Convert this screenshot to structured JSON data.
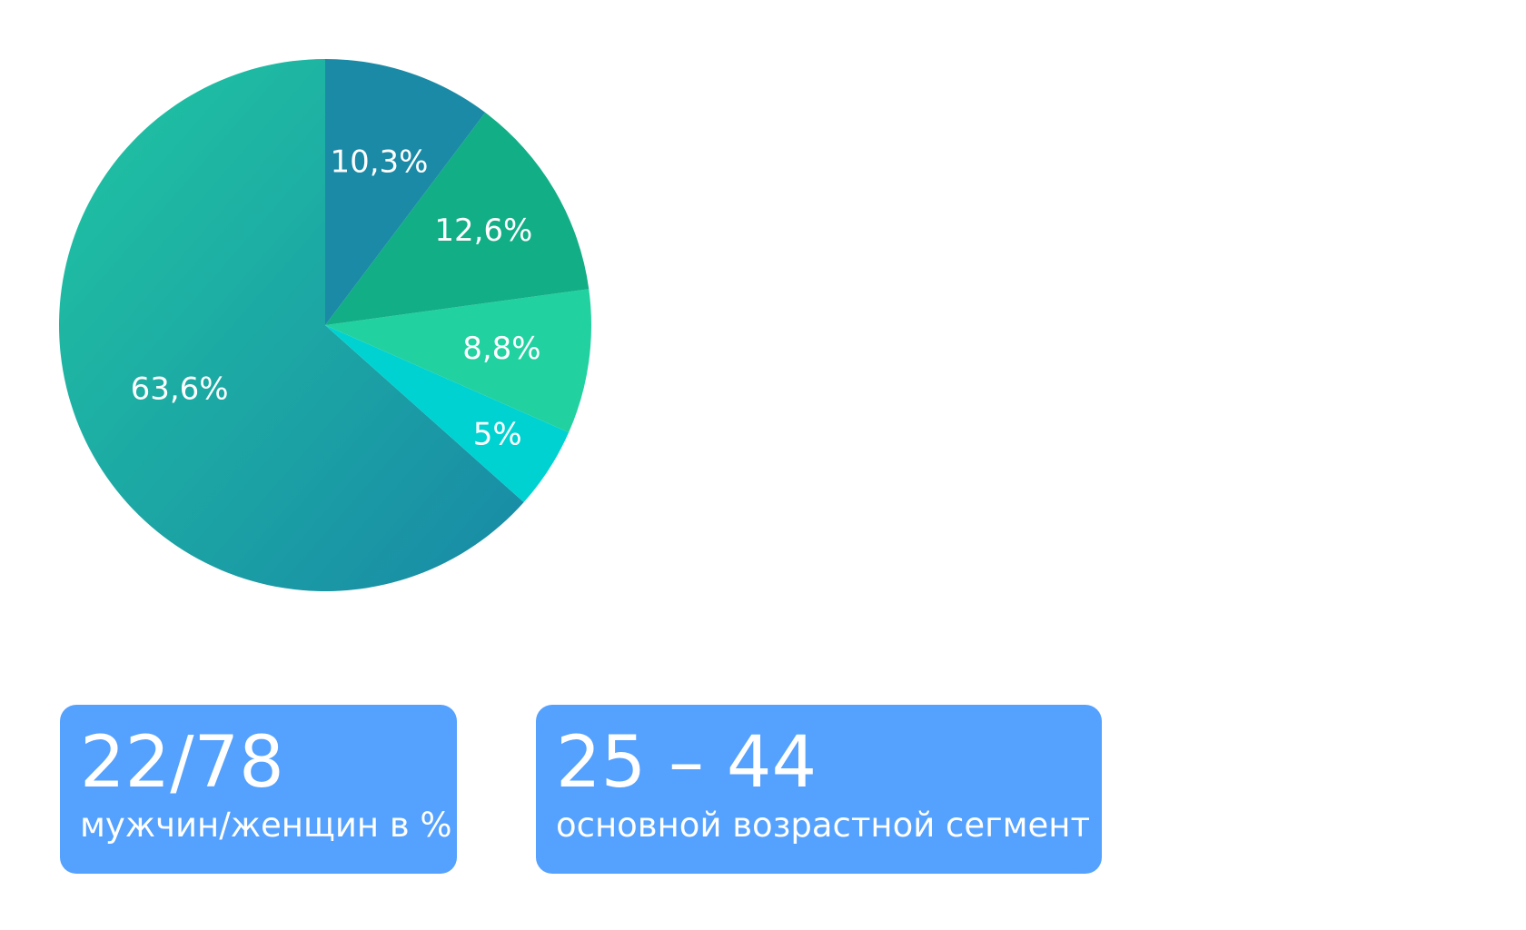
{
  "chart_data": {
    "type": "pie",
    "title": "",
    "start_angle_deg": 90,
    "direction": "counterclockwise",
    "slices": [
      {
        "label": "63,6%",
        "value": 63.6,
        "color": "#1a9ea4"
      },
      {
        "label": "5%",
        "value": 5.0,
        "color": "#00d2d2"
      },
      {
        "label": "8,8%",
        "value": 8.8,
        "color": "#22d1a0"
      },
      {
        "label": "12,6%",
        "value": 12.6,
        "color": "#12ae86"
      },
      {
        "label": "10,3%",
        "value": 10.3,
        "color": "#1a8aa6"
      }
    ],
    "gradient_main": {
      "from": "#20c6a2",
      "to": "#1889a6"
    }
  },
  "stats": {
    "gender": {
      "value": "22/78",
      "caption": "мужчин/женщин в %"
    },
    "age": {
      "value": "25 – 44",
      "caption": "основной возрастной сегмент"
    }
  },
  "card_color": "#55a1fe"
}
